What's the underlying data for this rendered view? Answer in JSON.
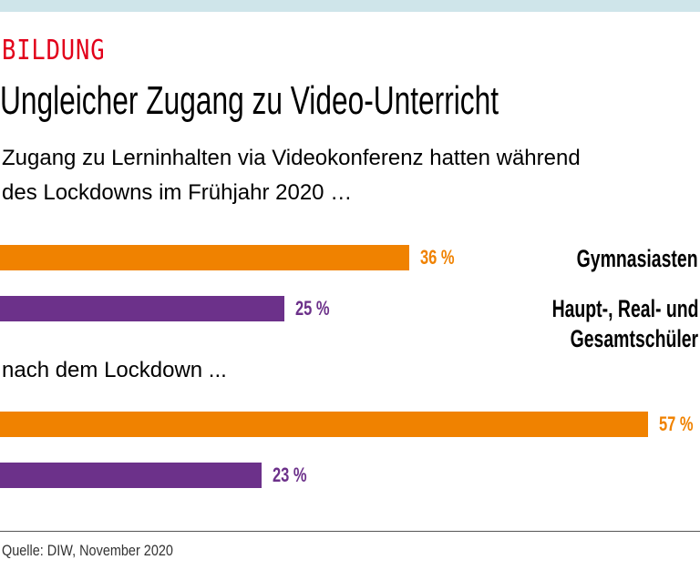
{
  "kicker": "BILDUNG",
  "chart_data": {
    "type": "bar",
    "orientation": "horizontal",
    "title": "Ungleicher Zugang zu Video-Unterricht",
    "subtitle": "Zugang zu Lerninhalten via Videokonferenz hatten während des Lockdowns im Frühjahr 2020 …",
    "subtitle_line1": "Zugang zu Lerninhalten via Videokonferenz hatten während",
    "subtitle_line2": "des Lockdowns im Frühjahr 2020 …",
    "groups": [
      {
        "label": "",
        "values": [
          36,
          25
        ],
        "value_labels": [
          "36 %",
          "25 %"
        ]
      },
      {
        "label": "nach dem Lockdown ...",
        "values": [
          57,
          23
        ],
        "value_labels": [
          "57 %",
          "23 %"
        ]
      }
    ],
    "series": [
      {
        "name": "Gymnasiasten",
        "color": "#f08200"
      },
      {
        "name": "Haupt-, Real- und Gesamtschüler",
        "name_line1": "Haupt-, Real- und",
        "name_line2": "Gesamtschüler",
        "color": "#6c318a"
      }
    ],
    "unit": "%",
    "legend_placement": "right",
    "grid": false
  },
  "source": "Quelle: DIW, November 2020"
}
